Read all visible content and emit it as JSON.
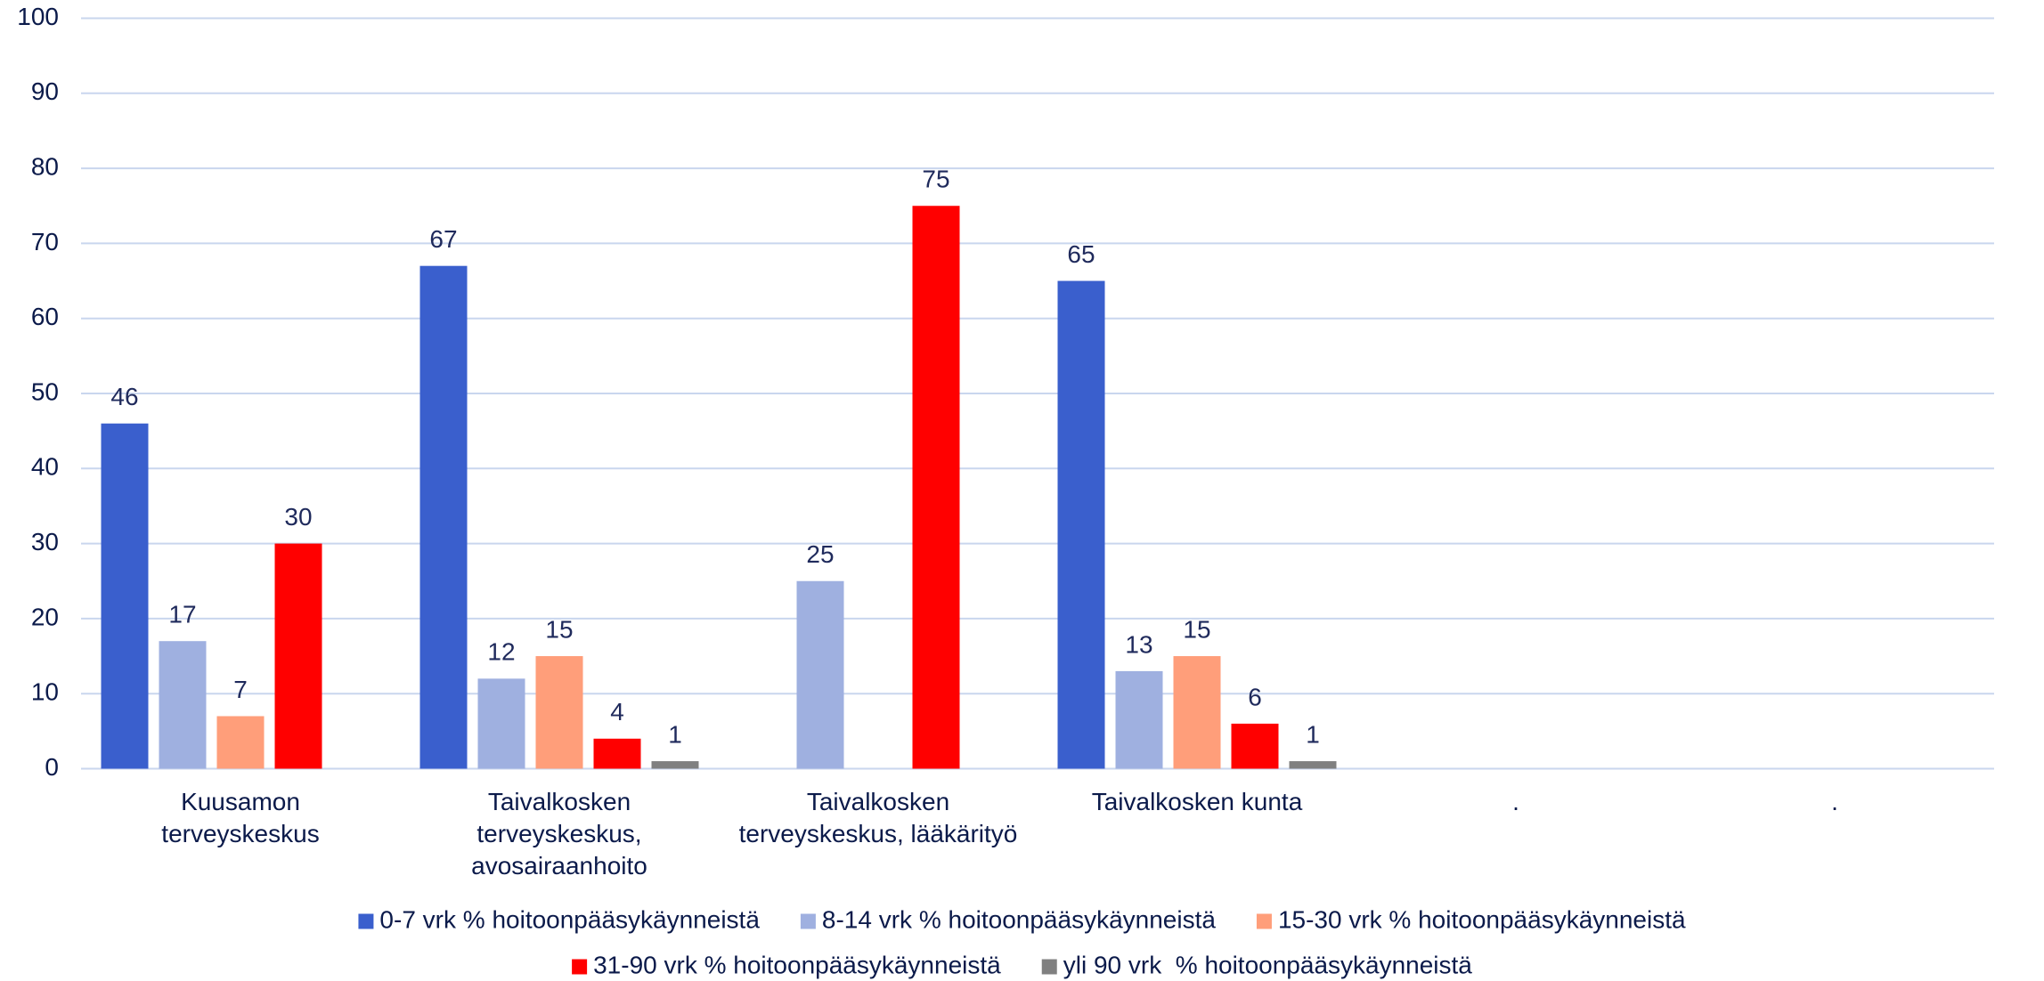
{
  "chart_data": {
    "type": "bar",
    "categories": [
      "Kuusamon terveyskeskus",
      "Taivalkosken terveyskeskus, avosairaanhoito",
      "Taivalkosken terveyskeskus, lääkärityö",
      "Taivalkosken kunta",
      ".",
      "."
    ],
    "series": [
      {
        "name": "0-7 vrk % hoitoonpääsykäynneistä",
        "color": "#3a5fcd",
        "values": [
          46,
          67,
          null,
          65,
          null,
          null
        ]
      },
      {
        "name": "8-14 vrk % hoitoonpääsykäynneistä",
        "color": "#9fb0e0",
        "values": [
          17,
          12,
          25,
          13,
          null,
          null
        ]
      },
      {
        "name": "15-30 vrk % hoitoonpääsykäynneistä",
        "color": "#ff9e7a",
        "values": [
          7,
          15,
          null,
          15,
          null,
          null
        ]
      },
      {
        "name": "31-90 vrk % hoitoonpääsykäynneistä",
        "color": "#ff0000",
        "values": [
          30,
          4,
          75,
          6,
          null,
          null
        ]
      },
      {
        "name": "yli 90 vrk  % hoitoonpääsykäynneistä",
        "color": "#808080",
        "values": [
          null,
          1,
          null,
          1,
          null,
          null
        ]
      }
    ],
    "ylim": [
      0,
      100
    ],
    "yticks": [
      0,
      10,
      20,
      30,
      40,
      50,
      60,
      70,
      80,
      90,
      100
    ],
    "grid": true,
    "legend": "bottom"
  }
}
